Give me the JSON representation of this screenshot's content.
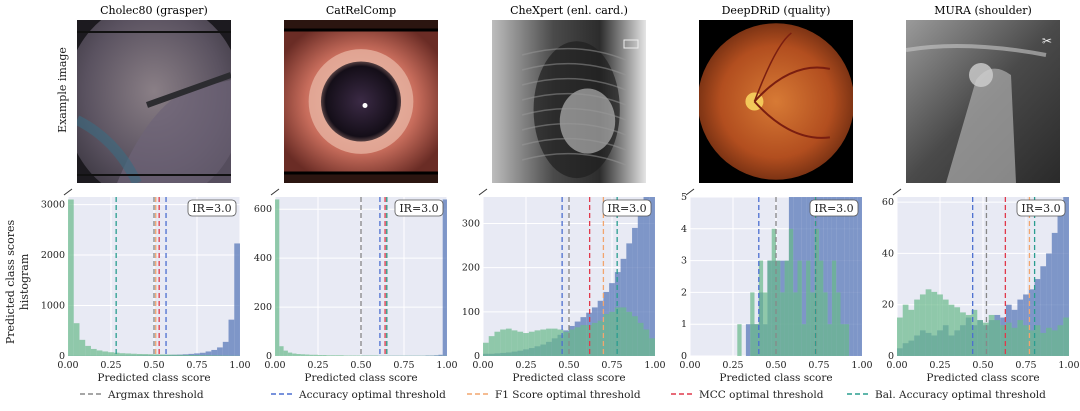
{
  "row_labels": {
    "images": "Example image",
    "hist_line1": "Predicted class scores",
    "hist_line2": "histogram"
  },
  "colors": {
    "neg_hist": "#6ab98a",
    "pos_hist": "#5b79b9",
    "plot_bg": "#e8eaf4",
    "grid": "#ffffff",
    "argmax": "#888888",
    "accuracy": "#4c6fd0",
    "f1": "#f2a56e",
    "mcc": "#e0394b",
    "bal_acc": "#2a9d8f"
  },
  "legend": [
    {
      "key": "argmax",
      "label": "Argmax threshold"
    },
    {
      "key": "accuracy",
      "label": "Accuracy optimal threshold"
    },
    {
      "key": "f1",
      "label": "F1 Score optimal threshold"
    },
    {
      "key": "mcc",
      "label": "MCC optimal threshold"
    },
    {
      "key": "bal_acc",
      "label": "Bal. Accuracy optimal threshold"
    }
  ],
  "images": [
    {
      "title": "Cholec80 (grasper)",
      "kind": "laparoscopy"
    },
    {
      "title": "CatRelComp",
      "kind": "eye"
    },
    {
      "title": "CheXpert (enl. card.)",
      "kind": "xray"
    },
    {
      "title": "DeepDRiD (quality)",
      "kind": "fundus"
    },
    {
      "title": "MURA (shoulder)",
      "kind": "shoulder"
    }
  ],
  "chart_data": [
    {
      "type": "bar",
      "dataset": "Cholec80 (grasper)",
      "ir_label": "IR=3.0",
      "xlabel": "Predicted class score",
      "xlim": [
        0,
        1
      ],
      "ylim": [
        0,
        3150
      ],
      "xticks": [
        "0.00",
        "0.25",
        "0.50",
        "0.75",
        "1.00"
      ],
      "yticks": [
        0,
        1000,
        2000,
        3000
      ],
      "bins": 30,
      "negative": [
        3100,
        650,
        320,
        200,
        140,
        110,
        90,
        75,
        65,
        55,
        50,
        45,
        40,
        38,
        35,
        32,
        30,
        28,
        26,
        24,
        22,
        20,
        18,
        16,
        14,
        12,
        10,
        8,
        6,
        5
      ],
      "positive": [
        5,
        5,
        5,
        5,
        5,
        5,
        5,
        6,
        6,
        7,
        8,
        9,
        10,
        12,
        14,
        16,
        18,
        20,
        24,
        28,
        34,
        42,
        52,
        64,
        90,
        120,
        170,
        280,
        720,
        2230
      ],
      "thresholds": {
        "argmax": 0.5,
        "accuracy": 0.57,
        "f1": 0.51,
        "mcc": 0.53,
        "bal_acc": 0.28
      }
    },
    {
      "type": "bar",
      "dataset": "CatRelComp",
      "ir_label": "IR=3.0",
      "xlabel": "Predicted class score",
      "xlim": [
        0,
        1
      ],
      "ylim": [
        0,
        650
      ],
      "xticks": [
        "0.00",
        "0.25",
        "0.50",
        "0.75",
        "1.00"
      ],
      "yticks": [
        0,
        200,
        400,
        600
      ],
      "bins": 40,
      "negative": [
        640,
        40,
        22,
        14,
        10,
        8,
        7,
        6,
        5,
        5,
        4,
        4,
        3,
        3,
        3,
        3,
        2,
        2,
        2,
        2,
        2,
        2,
        2,
        2,
        1,
        1,
        1,
        1,
        1,
        1,
        1,
        1,
        1,
        1,
        1,
        1,
        1,
        1,
        1,
        1
      ],
      "positive": [
        0,
        0,
        0,
        0,
        0,
        0,
        0,
        0,
        0,
        0,
        0,
        0,
        0,
        0,
        0,
        0,
        0,
        0,
        0,
        0,
        1,
        1,
        1,
        1,
        1,
        1,
        1,
        1,
        1,
        1,
        1,
        1,
        1,
        1,
        1,
        2,
        2,
        3,
        5,
        640
      ],
      "thresholds": {
        "argmax": 0.5,
        "accuracy": 0.61,
        "f1": 0.65,
        "mcc": 0.64,
        "bal_acc": 0.65
      }
    },
    {
      "type": "bar",
      "dataset": "CheXpert (enl. card.)",
      "ir_label": "IR=3.0",
      "xlabel": "Predicted class score",
      "xlim": [
        0,
        1
      ],
      "ylim": [
        0,
        360
      ],
      "xticks": [
        "0.00",
        "0.25",
        "0.50",
        "0.75",
        "1.00"
      ],
      "yticks": [
        0,
        100,
        200,
        300
      ],
      "bins": 30,
      "negative": [
        30,
        45,
        55,
        60,
        62,
        58,
        55,
        52,
        55,
        58,
        60,
        62,
        62,
        60,
        55,
        60,
        65,
        70,
        70,
        75,
        80,
        95,
        100,
        110,
        110,
        100,
        90,
        75,
        60,
        40
      ],
      "positive": [
        5,
        5,
        6,
        7,
        8,
        10,
        12,
        15,
        18,
        22,
        26,
        32,
        40,
        48,
        58,
        68,
        78,
        88,
        98,
        110,
        125,
        145,
        165,
        190,
        220,
        255,
        290,
        330,
        360,
        360
      ],
      "thresholds": {
        "argmax": 0.5,
        "accuracy": 0.46,
        "f1": 0.7,
        "mcc": 0.62,
        "bal_acc": 0.78
      }
    },
    {
      "type": "bar",
      "dataset": "DeepDRiD (quality)",
      "ir_label": "IR=3.0",
      "xlabel": "Predicted class score",
      "xlim": [
        0,
        1
      ],
      "ylim": [
        0,
        5
      ],
      "xticks": [
        "0.00",
        "0.25",
        "0.50",
        "0.75",
        "1.00"
      ],
      "yticks": [
        0,
        1,
        2,
        3,
        4,
        5
      ],
      "bins": 40,
      "negative": [
        0,
        0,
        0,
        0,
        0,
        0,
        0,
        0,
        0,
        0,
        0,
        1,
        0,
        0,
        2,
        1,
        3,
        2,
        3,
        4,
        3,
        2,
        3,
        4,
        2,
        3,
        1,
        3,
        2,
        4,
        3,
        2,
        1,
        3,
        2,
        1,
        1,
        0,
        0,
        0
      ],
      "positive": [
        0,
        0,
        0,
        0,
        0,
        0,
        0,
        0,
        0,
        0,
        0,
        0,
        0,
        1,
        1,
        1,
        2,
        1,
        3,
        3,
        3,
        3,
        3,
        5,
        5,
        5,
        5,
        5,
        5,
        5,
        5,
        5,
        5,
        5,
        5,
        5,
        5,
        5,
        5,
        5
      ],
      "thresholds": {
        "argmax": 0.5,
        "accuracy": 0.4,
        "f1": 0.73,
        "mcc": 0.73,
        "bal_acc": 0.73
      }
    },
    {
      "type": "bar",
      "dataset": "MURA (shoulder)",
      "ir_label": "IR=3.0",
      "xlabel": "Predicted class score",
      "xlim": [
        0,
        1
      ],
      "ylim": [
        0,
        62
      ],
      "xticks": [
        "0.00",
        "0.25",
        "0.50",
        "0.75",
        "1.00"
      ],
      "yticks": [
        0,
        20,
        40,
        60
      ],
      "bins": 30,
      "negative": [
        15,
        20,
        18,
        22,
        24,
        26,
        25,
        24,
        22,
        20,
        19,
        17,
        16,
        18,
        14,
        13,
        16,
        14,
        12,
        13,
        11,
        14,
        12,
        10,
        12,
        9,
        11,
        10,
        12,
        15
      ],
      "positive": [
        3,
        5,
        6,
        8,
        10,
        9,
        8,
        10,
        12,
        8,
        10,
        12,
        15,
        12,
        14,
        12,
        14,
        16,
        15,
        20,
        18,
        22,
        24,
        26,
        30,
        35,
        40,
        48,
        55,
        62
      ],
      "thresholds": {
        "argmax": 0.52,
        "accuracy": 0.44,
        "f1": 0.77,
        "mcc": 0.63,
        "bal_acc": 0.8
      }
    }
  ]
}
